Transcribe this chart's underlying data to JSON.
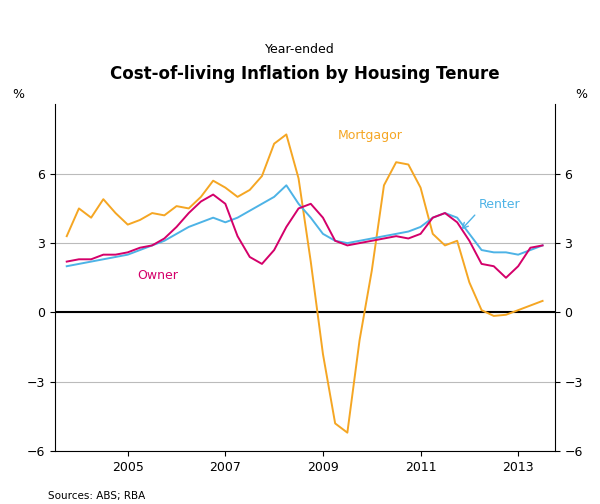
{
  "title": "Cost-of-living Inflation by Housing Tenure",
  "subtitle": "Year-ended",
  "source": "Sources: ABS; RBA",
  "ylim": [
    -6,
    9
  ],
  "yticks": [
    -6,
    -3,
    0,
    3,
    6
  ],
  "xlim": [
    2003.5,
    2013.75
  ],
  "xticks": [
    2005,
    2007,
    2009,
    2011,
    2013
  ],
  "background_color": "#ffffff",
  "grid_color": "#bbbbbb",
  "mortgagor_x": [
    2003.75,
    2004.0,
    2004.25,
    2004.5,
    2004.75,
    2005.0,
    2005.25,
    2005.5,
    2005.75,
    2006.0,
    2006.25,
    2006.5,
    2006.75,
    2007.0,
    2007.25,
    2007.5,
    2007.75,
    2008.0,
    2008.25,
    2008.5,
    2008.75,
    2009.0,
    2009.25,
    2009.5,
    2009.75,
    2010.0,
    2010.25,
    2010.5,
    2010.75,
    2011.0,
    2011.25,
    2011.5,
    2011.75,
    2012.0,
    2012.25,
    2012.5,
    2012.75,
    2013.0,
    2013.25,
    2013.5
  ],
  "mortgagor_y": [
    3.3,
    4.5,
    4.1,
    4.9,
    4.3,
    3.8,
    4.0,
    4.3,
    4.2,
    4.6,
    4.5,
    5.0,
    5.7,
    5.4,
    5.0,
    5.3,
    5.9,
    7.3,
    7.7,
    5.8,
    2.2,
    -1.8,
    -4.8,
    -5.2,
    -1.2,
    1.8,
    5.5,
    6.5,
    6.4,
    5.4,
    3.4,
    2.9,
    3.1,
    1.3,
    0.1,
    -0.15,
    -0.1,
    0.1,
    0.3,
    0.5
  ],
  "renter_x": [
    2003.75,
    2004.0,
    2004.25,
    2004.5,
    2004.75,
    2005.0,
    2005.25,
    2005.5,
    2005.75,
    2006.0,
    2006.25,
    2006.5,
    2006.75,
    2007.0,
    2007.25,
    2007.5,
    2007.75,
    2008.0,
    2008.25,
    2008.5,
    2008.75,
    2009.0,
    2009.25,
    2009.5,
    2009.75,
    2010.0,
    2010.25,
    2010.5,
    2010.75,
    2011.0,
    2011.25,
    2011.5,
    2011.75,
    2012.0,
    2012.25,
    2012.5,
    2012.75,
    2013.0,
    2013.25,
    2013.5
  ],
  "renter_y": [
    2.0,
    2.1,
    2.2,
    2.3,
    2.4,
    2.5,
    2.7,
    2.9,
    3.1,
    3.4,
    3.7,
    3.9,
    4.1,
    3.9,
    4.1,
    4.4,
    4.7,
    5.0,
    5.5,
    4.7,
    4.1,
    3.4,
    3.1,
    3.0,
    3.1,
    3.2,
    3.3,
    3.4,
    3.5,
    3.7,
    4.1,
    4.3,
    4.1,
    3.4,
    2.7,
    2.6,
    2.6,
    2.5,
    2.7,
    2.9
  ],
  "owner_x": [
    2003.75,
    2004.0,
    2004.25,
    2004.5,
    2004.75,
    2005.0,
    2005.25,
    2005.5,
    2005.75,
    2006.0,
    2006.25,
    2006.5,
    2006.75,
    2007.0,
    2007.25,
    2007.5,
    2007.75,
    2008.0,
    2008.25,
    2008.5,
    2008.75,
    2009.0,
    2009.25,
    2009.5,
    2009.75,
    2010.0,
    2010.25,
    2010.5,
    2010.75,
    2011.0,
    2011.25,
    2011.5,
    2011.75,
    2012.0,
    2012.25,
    2012.5,
    2012.75,
    2013.0,
    2013.25,
    2013.5
  ],
  "owner_y": [
    2.2,
    2.3,
    2.3,
    2.5,
    2.5,
    2.6,
    2.8,
    2.9,
    3.2,
    3.7,
    4.3,
    4.8,
    5.1,
    4.7,
    3.3,
    2.4,
    2.1,
    2.7,
    3.7,
    4.5,
    4.7,
    4.1,
    3.1,
    2.9,
    3.0,
    3.1,
    3.2,
    3.3,
    3.2,
    3.4,
    4.1,
    4.3,
    3.9,
    3.1,
    2.1,
    2.0,
    1.5,
    2.0,
    2.8,
    2.9
  ],
  "mortgagor_color": "#f5a623",
  "renter_color": "#4db3e6",
  "owner_color": "#d4006a",
  "line_width": 1.4,
  "mortgagor_label": "Mortgagor",
  "renter_label": "Renter",
  "owner_label": "Owner"
}
